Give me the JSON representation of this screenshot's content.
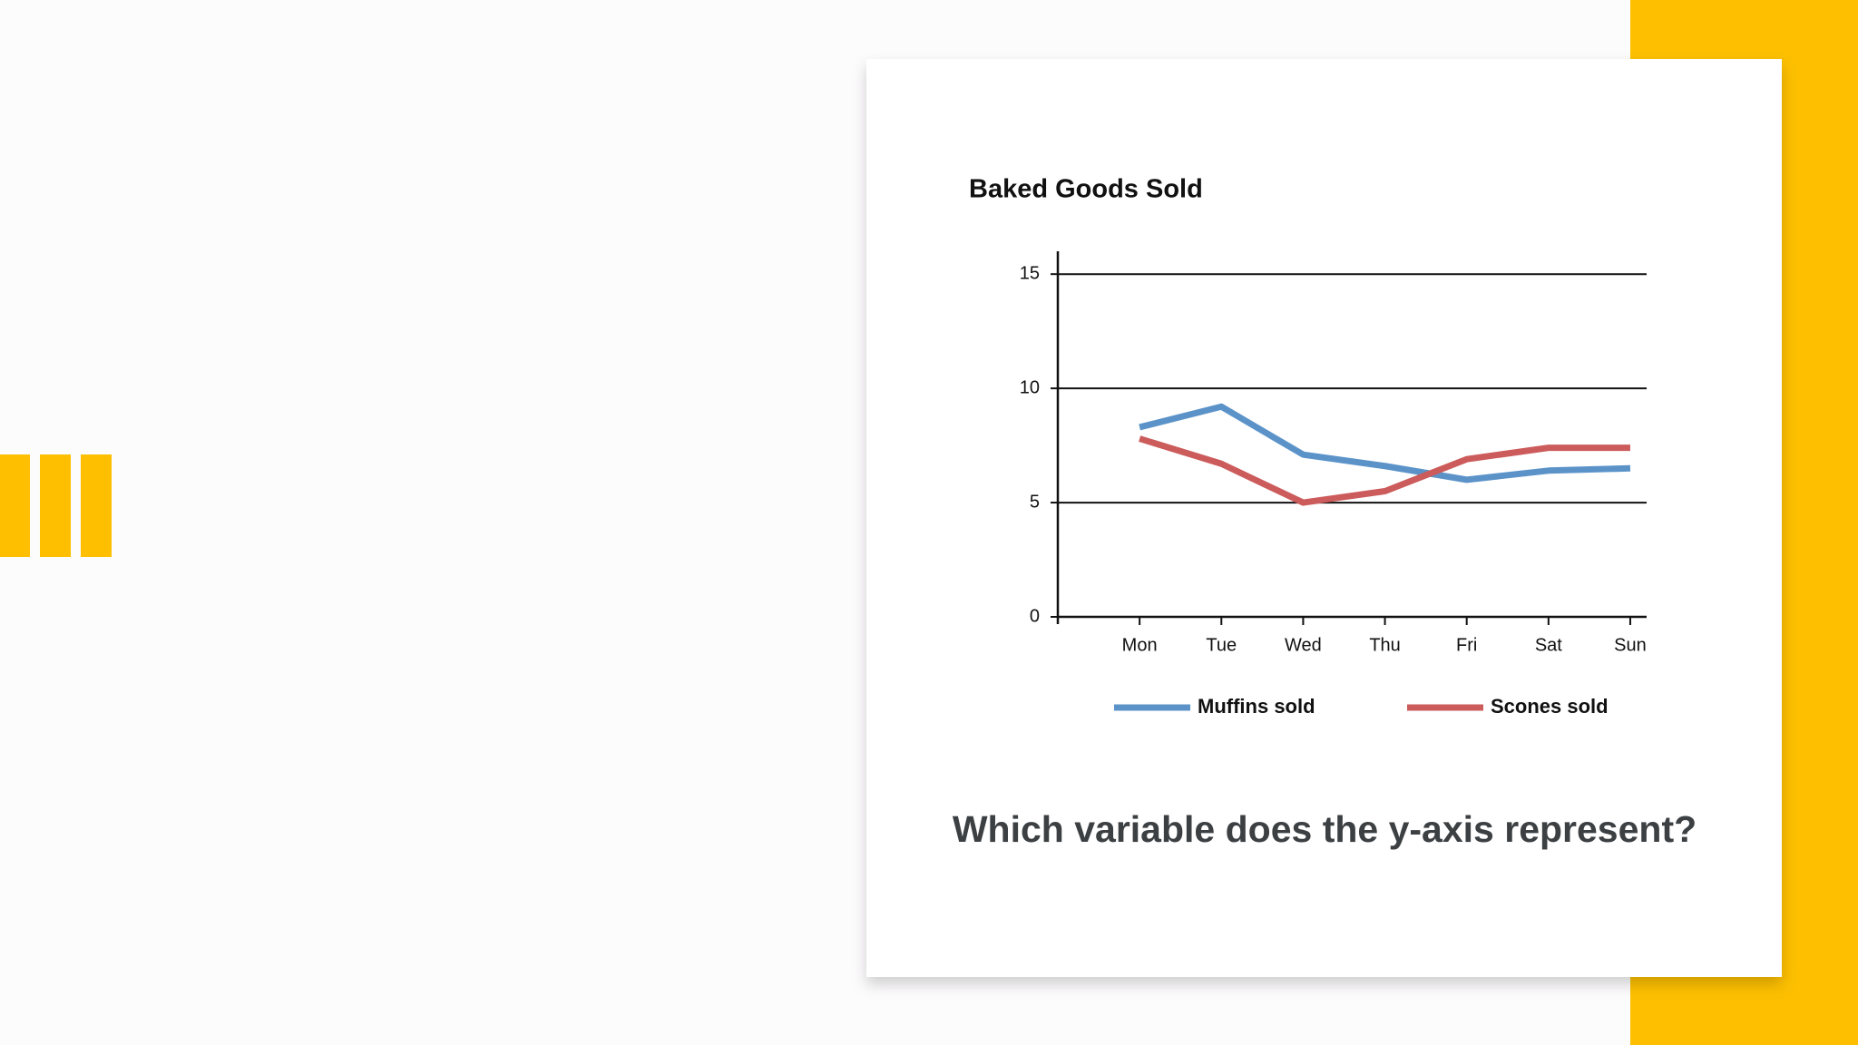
{
  "chart_data": {
    "type": "line",
    "title": "Baked Goods Sold",
    "categories": [
      "Mon",
      "Tue",
      "Wed",
      "Thu",
      "Fri",
      "Sat",
      "Sun"
    ],
    "series": [
      {
        "name": "Muffins sold",
        "color": "#5b93c9",
        "values": [
          8.3,
          9.2,
          7.1,
          6.6,
          6.0,
          6.4,
          6.5
        ]
      },
      {
        "name": "Scones sold",
        "color": "#cc5b5b",
        "values": [
          7.8,
          6.7,
          5.0,
          5.5,
          6.9,
          7.4,
          7.4
        ]
      }
    ],
    "ylim": [
      0,
      16
    ],
    "yticks": [
      0,
      5,
      10,
      15
    ],
    "grid": true,
    "legend": "bottom"
  },
  "question": "Which variable does the y-axis represent?"
}
